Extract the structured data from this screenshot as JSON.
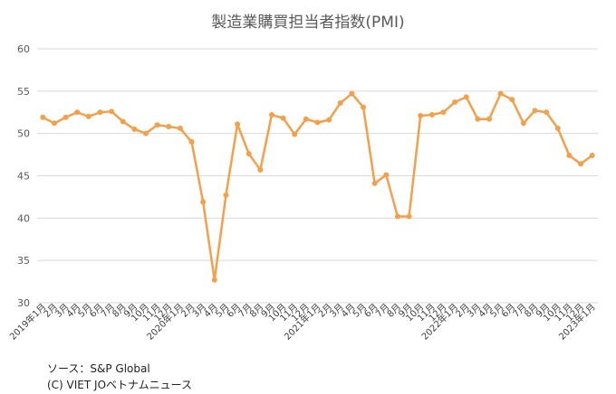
{
  "chart_data": {
    "type": "line",
    "title": "製造業購買担当者指数(PMI)",
    "xlabel": "",
    "ylabel": "",
    "ylim": [
      30,
      60
    ],
    "yticks": [
      30,
      35,
      40,
      45,
      50,
      55,
      60
    ],
    "grid": true,
    "legend": "none",
    "color": "#F4A04A",
    "categories": [
      "2019年1月",
      "2月",
      "3月",
      "4月",
      "5月",
      "6月",
      "7月",
      "8月",
      "9月",
      "10月",
      "11月",
      "12月",
      "2020年1月",
      "2月",
      "3月",
      "4月",
      "5月",
      "6月",
      "7月",
      "8月",
      "9月",
      "10月",
      "11月",
      "12月",
      "2021年1月",
      "2月",
      "3月",
      "4月",
      "5月",
      "6月",
      "7月",
      "8月",
      "9月",
      "10月",
      "11月",
      "12月",
      "2022年1月",
      "2月",
      "3月",
      "4月",
      "5月",
      "6月",
      "7月",
      "8月",
      "9月",
      "10月",
      "11月",
      "12月",
      "2023年1月"
    ],
    "series": [
      {
        "values": [
          51.9,
          51.2,
          51.9,
          52.5,
          52.0,
          52.5,
          52.6,
          51.4,
          50.5,
          50.0,
          51.0,
          50.8,
          50.6,
          49.0,
          41.9,
          32.7,
          42.7,
          51.1,
          47.6,
          45.7,
          52.2,
          51.8,
          49.9,
          51.7,
          51.3,
          51.6,
          53.6,
          54.7,
          53.1,
          44.1,
          45.1,
          40.2,
          40.2,
          52.1,
          52.2,
          52.5,
          53.7,
          54.3,
          51.7,
          51.7,
          54.7,
          54.0,
          51.2,
          52.7,
          52.5,
          50.6,
          47.4,
          46.4,
          47.4
        ]
      }
    ]
  },
  "source": {
    "line1": "ソース：S&P Global",
    "line2": "(C) VIET JOベトナムニュース"
  }
}
